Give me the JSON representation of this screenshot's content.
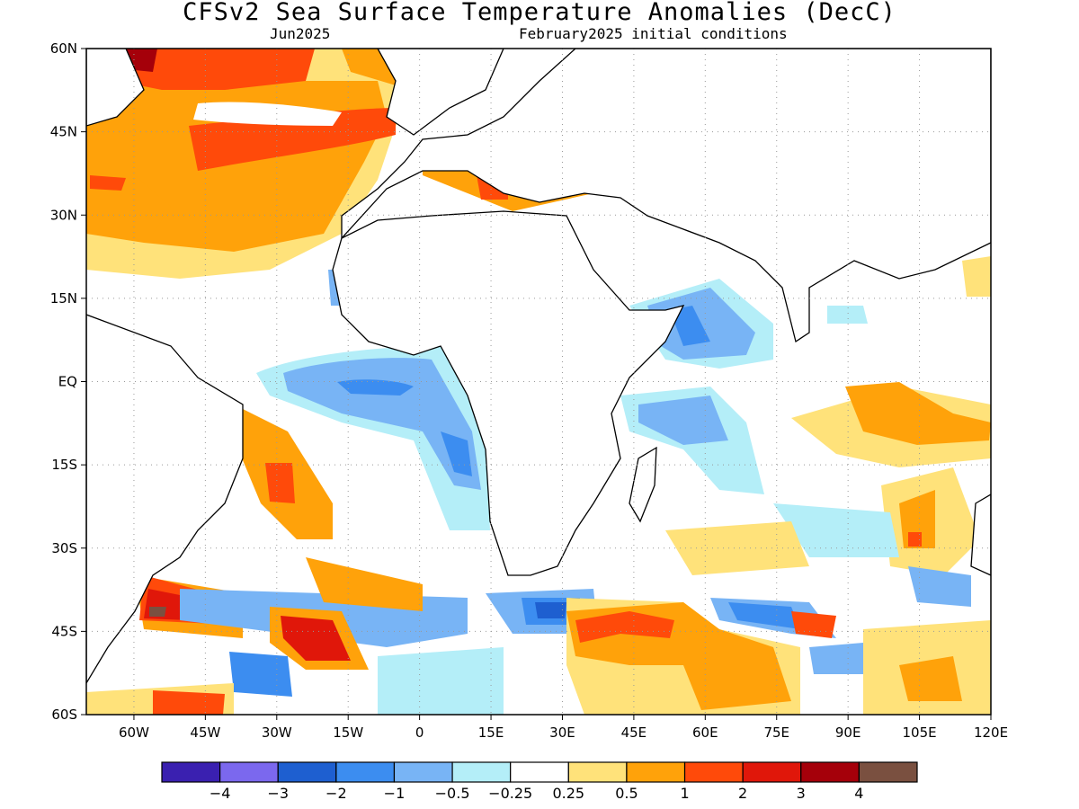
{
  "title": "CFSv2 Sea Surface Temperature Anomalies (DecC)",
  "subtitle_left": "Jun2025",
  "subtitle_right": "February2025 initial conditions",
  "map": {
    "lon_range": [
      -70,
      120
    ],
    "lat_range": [
      -60,
      60
    ],
    "y_ticks": [
      "60N",
      "45N",
      "30N",
      "15N",
      "EQ",
      "15S",
      "30S",
      "45S",
      "60S"
    ],
    "x_ticks": [
      "60W",
      "45W",
      "30W",
      "15W",
      "0",
      "15E",
      "30E",
      "45E",
      "60E",
      "75E",
      "90E",
      "105E",
      "120E"
    ],
    "grid": true
  },
  "colorbar": {
    "colors": [
      "#3a20b0",
      "#7b68ee",
      "#1e5fd0",
      "#3c8df0",
      "#78b4f5",
      "#b4eef8",
      "#ffffff",
      "#ffe27a",
      "#ffa20a",
      "#ff4a0a",
      "#e0170a",
      "#a5000a",
      "#7a5040"
    ],
    "labels": [
      "-4",
      "-3",
      "-2",
      "-1",
      "-0.5",
      "-0.25",
      "0.25",
      "0.5",
      "1",
      "2",
      "3",
      "4"
    ]
  },
  "palette": {
    "ocean": "#ffffff",
    "land_outline": "#000000",
    "grid": "#999999"
  }
}
